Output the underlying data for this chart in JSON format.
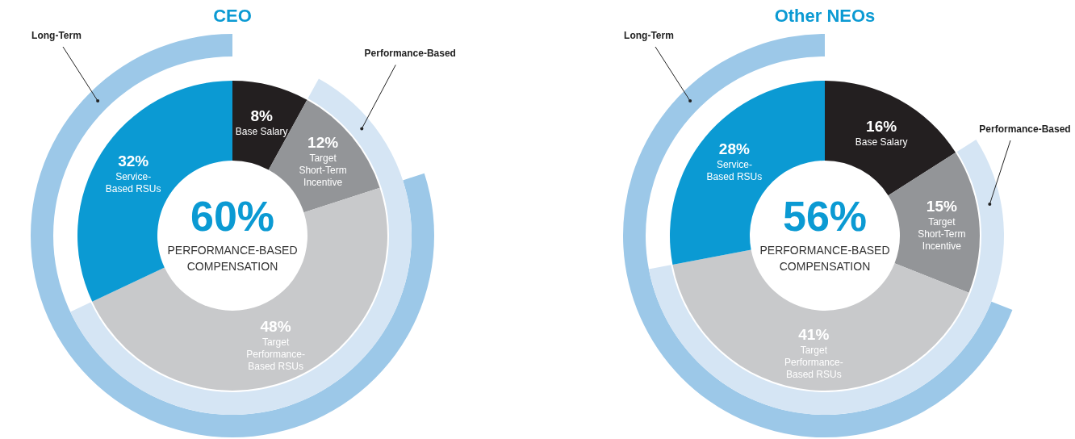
{
  "chart_data": [
    {
      "type": "donut",
      "title": "CEO",
      "categories": [
        "Base Salary",
        "Target Short-Term Incentive",
        "Target Performance-Based RSUs",
        "Service-Based RSUs"
      ],
      "values": [
        8,
        12,
        48,
        32
      ],
      "value_labels": [
        "8%",
        "12%",
        "48%",
        "32%"
      ],
      "colors": [
        "#231f20",
        "#939598",
        "#c8c9cb",
        "#0b9ad3"
      ],
      "annotations": [
        "60%",
        "PERFORMANCE-BASED COMPENSATION",
        "Long-Term",
        "Performance-Based"
      ],
      "legend": false
    },
    {
      "type": "donut",
      "title": "Other NEOs",
      "categories": [
        "Base Salary",
        "Target Short-Term Incentive",
        "Target Performance-Based RSUs",
        "Service-Based RSUs"
      ],
      "values": [
        16,
        15,
        41,
        28
      ],
      "value_labels": [
        "16%",
        "15%",
        "41%",
        "28%"
      ],
      "colors": [
        "#231f20",
        "#939598",
        "#c8c9cb",
        "#0b9ad3"
      ],
      "annotations": [
        "56%",
        "PERFORMANCE-BASED COMPENSATION",
        "Long-Term",
        "Performance-Based"
      ],
      "legend": false
    }
  ]
}
